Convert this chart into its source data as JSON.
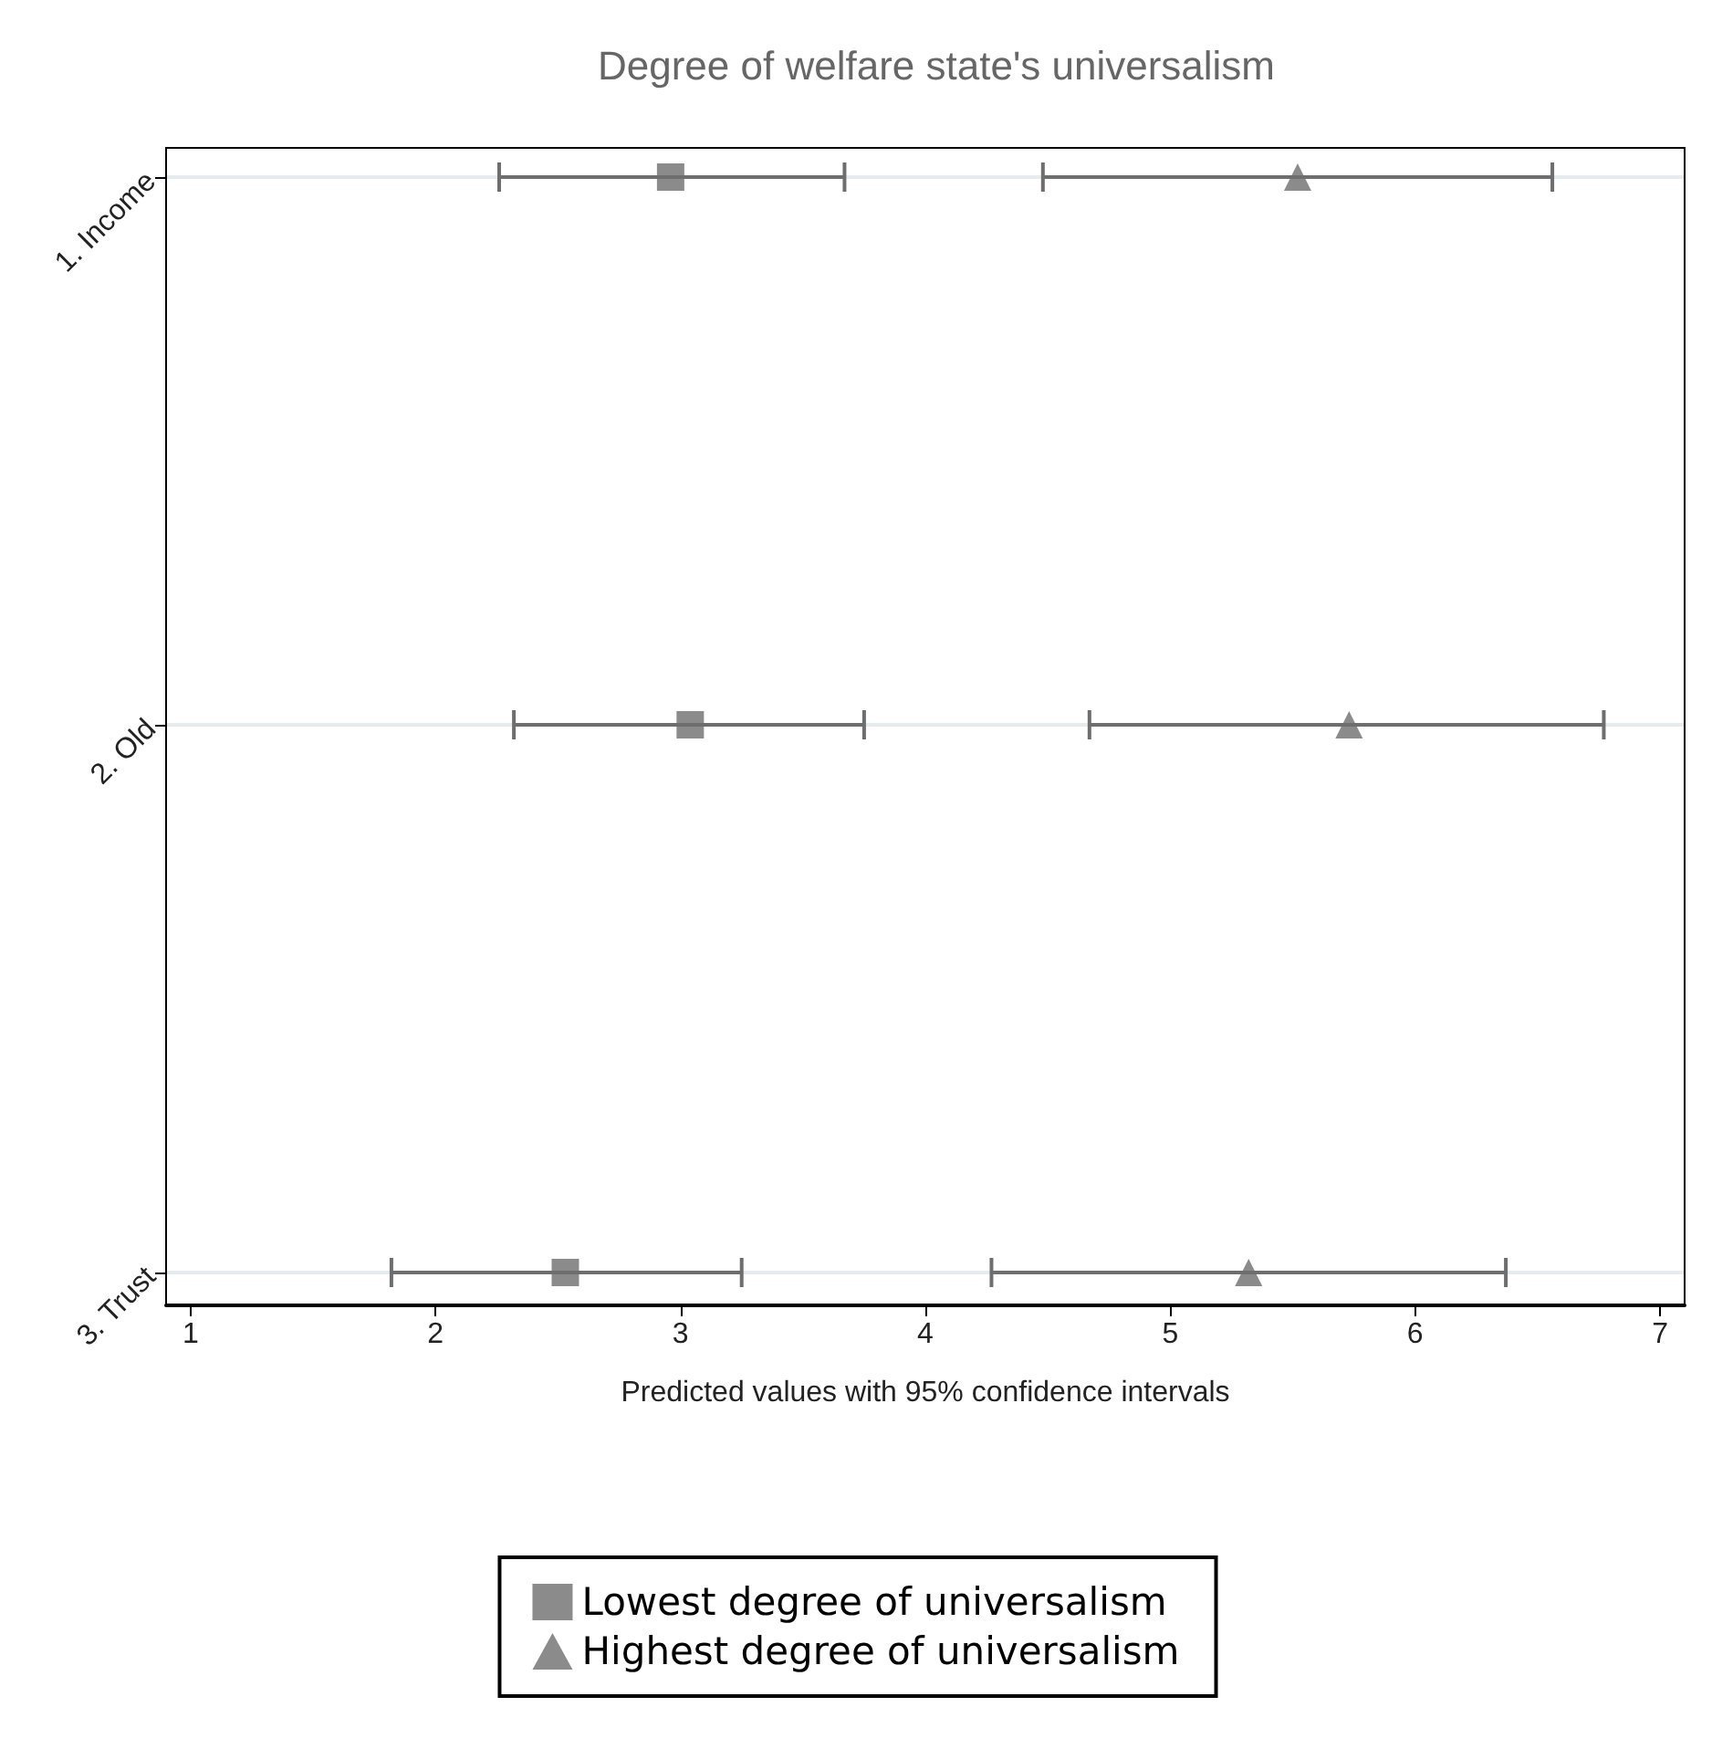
{
  "chart_data": {
    "type": "scatter",
    "orientation": "horizontal",
    "title": "Degree of welfare state's universalism",
    "xlabel": "Predicted values with 95% confidence intervals",
    "categories": [
      "1. Income",
      "2. Old",
      "3. Trust"
    ],
    "xlim": [
      0.9,
      7.1
    ],
    "xticks": [
      1,
      2,
      3,
      4,
      5,
      6,
      7
    ],
    "grid": "y",
    "legend": "bottom",
    "series": [
      {
        "name": "Lowest degree of universalism",
        "color": "#6e6e6e",
        "marker": "square",
        "values": [
          2.96,
          3.04,
          2.53
        ],
        "errors": [
          [
            2.26,
            3.67
          ],
          [
            2.32,
            3.75
          ],
          [
            1.82,
            3.25
          ]
        ]
      },
      {
        "name": "Highest degree of universalism",
        "color": "#6e6e6e",
        "marker": "triangle",
        "values": [
          5.52,
          5.73,
          5.32
        ],
        "errors": [
          [
            4.48,
            6.56
          ],
          [
            4.67,
            6.77
          ],
          [
            4.27,
            6.37
          ]
        ]
      }
    ]
  }
}
